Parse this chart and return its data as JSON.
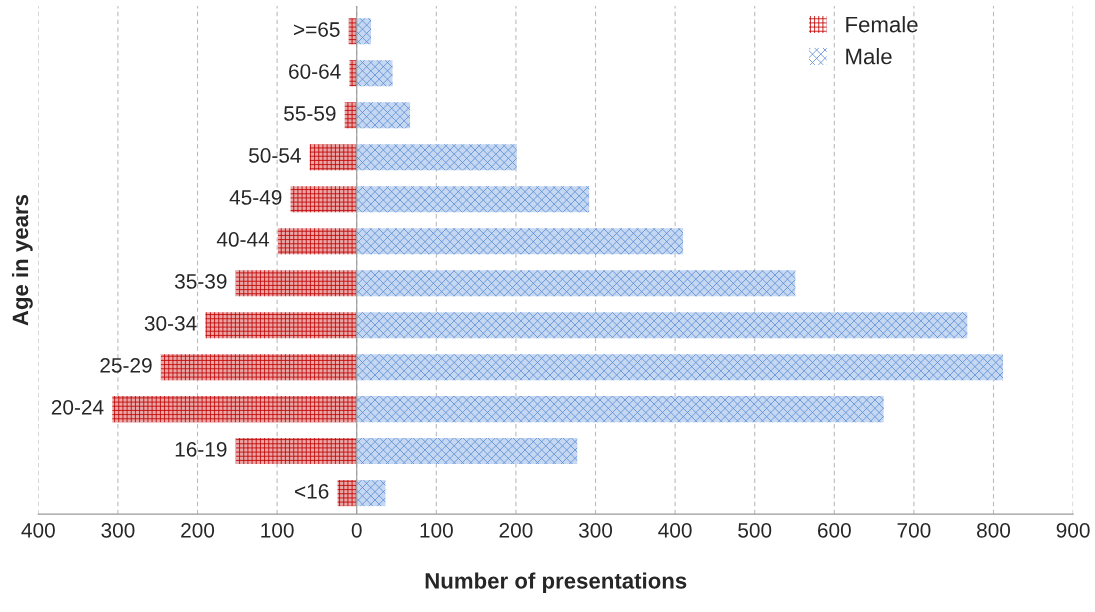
{
  "chart_data": {
    "type": "bar",
    "orientation": "horizontal",
    "stacked": true,
    "xlabel": "Number of presentations",
    "ylabel": "Age in years",
    "categories": [
      ">=65",
      "60-64",
      "55-59",
      "50-54",
      "45-49",
      "40-44",
      "35-39",
      "30-34",
      "25-29",
      "20-24",
      "16-19",
      "<16"
    ],
    "series": [
      {
        "name": "Female",
        "color": "#c00000",
        "values": [
          -10,
          -9,
          -15,
          -59,
          -83,
          -99,
          -152,
          -190,
          -246,
          -307,
          -152,
          -24
        ]
      },
      {
        "name": "Male",
        "color": "#5b8ed6",
        "values": [
          18,
          45,
          67,
          201,
          292,
          410,
          551,
          767,
          812,
          662,
          277,
          36
        ]
      }
    ],
    "xlim": [
      -400,
      900
    ],
    "xticks": [
      {
        "value": -400,
        "label": "400"
      },
      {
        "value": -300,
        "label": "300"
      },
      {
        "value": -200,
        "label": "200"
      },
      {
        "value": -100,
        "label": "100"
      },
      0,
      100,
      200,
      300,
      400,
      500,
      600,
      700,
      800,
      900
    ],
    "grid": "x",
    "legend": "top right"
  }
}
